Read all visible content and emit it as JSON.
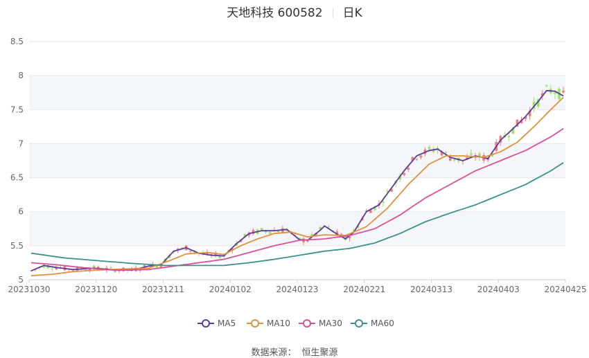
{
  "header": {
    "stock_name_code": "天地科技 600582",
    "period": "日K"
  },
  "source": {
    "label": "数据来源：",
    "value": "恒生聚源"
  },
  "colors": {
    "up": "#f07b7b",
    "down": "#99e25a",
    "ma5": "#5b3a9b",
    "ma10": "#e0913d",
    "ma30": "#d9509a",
    "ma60": "#3c8f8f",
    "grid": "#e6e6e6",
    "band": "#f5f6fa"
  },
  "chart_data": {
    "type": "candlestick",
    "x_tick_labels": [
      "20231030",
      "20231120",
      "20231211",
      "20240102",
      "20240123",
      "20240221",
      "20240313",
      "20240403",
      "20240425"
    ],
    "y_ticks": [
      5,
      5.5,
      6,
      6.5,
      7,
      7.5,
      8,
      8.5
    ],
    "ylim": [
      5,
      8.5
    ],
    "trading_days": 120,
    "series": [
      {
        "name": "MA5",
        "color": "#5b3a9b",
        "keypoints": [
          [
            0,
            5.13
          ],
          [
            3,
            5.21
          ],
          [
            6,
            5.18
          ],
          [
            10,
            5.15
          ],
          [
            15,
            5.17
          ],
          [
            19,
            5.15
          ],
          [
            24,
            5.14
          ],
          [
            28,
            5.2
          ],
          [
            31,
            5.22
          ],
          [
            34,
            5.42
          ],
          [
            37,
            5.47
          ],
          [
            40,
            5.39
          ],
          [
            43,
            5.36
          ],
          [
            46,
            5.35
          ],
          [
            49,
            5.53
          ],
          [
            52,
            5.68
          ],
          [
            55,
            5.72
          ],
          [
            58,
            5.72
          ],
          [
            61,
            5.74
          ],
          [
            64,
            5.59
          ],
          [
            66,
            5.58
          ],
          [
            69,
            5.73
          ],
          [
            70,
            5.79
          ],
          [
            73,
            5.67
          ],
          [
            75,
            5.6
          ],
          [
            77,
            5.7
          ],
          [
            80,
            6.0
          ],
          [
            83,
            6.1
          ],
          [
            86,
            6.35
          ],
          [
            89,
            6.6
          ],
          [
            92,
            6.82
          ],
          [
            95,
            6.9
          ],
          [
            97,
            6.92
          ],
          [
            100,
            6.8
          ],
          [
            103,
            6.75
          ],
          [
            106,
            6.82
          ],
          [
            109,
            6.78
          ],
          [
            112,
            7.05
          ],
          [
            115,
            7.22
          ],
          [
            118,
            7.4
          ],
          [
            121,
            7.62
          ],
          [
            123,
            7.78
          ],
          [
            125,
            7.77
          ],
          [
            127,
            7.7
          ]
        ]
      },
      {
        "name": "MA10",
        "color": "#e0913d",
        "keypoints": [
          [
            0,
            5.06
          ],
          [
            5,
            5.08
          ],
          [
            10,
            5.12
          ],
          [
            18,
            5.15
          ],
          [
            28,
            5.17
          ],
          [
            33,
            5.28
          ],
          [
            37,
            5.38
          ],
          [
            42,
            5.4
          ],
          [
            46,
            5.37
          ],
          [
            50,
            5.5
          ],
          [
            54,
            5.6
          ],
          [
            58,
            5.68
          ],
          [
            62,
            5.7
          ],
          [
            66,
            5.63
          ],
          [
            70,
            5.66
          ],
          [
            75,
            5.65
          ],
          [
            80,
            5.78
          ],
          [
            85,
            6.05
          ],
          [
            90,
            6.4
          ],
          [
            95,
            6.7
          ],
          [
            99,
            6.82
          ],
          [
            103,
            6.82
          ],
          [
            108,
            6.8
          ],
          [
            112,
            6.88
          ],
          [
            116,
            7.02
          ],
          [
            120,
            7.25
          ],
          [
            124,
            7.5
          ],
          [
            127,
            7.68
          ]
        ]
      },
      {
        "name": "MA30",
        "color": "#d9509a",
        "keypoints": [
          [
            0,
            5.25
          ],
          [
            6,
            5.22
          ],
          [
            12,
            5.18
          ],
          [
            20,
            5.14
          ],
          [
            28,
            5.15
          ],
          [
            34,
            5.2
          ],
          [
            40,
            5.25
          ],
          [
            46,
            5.3
          ],
          [
            52,
            5.4
          ],
          [
            58,
            5.5
          ],
          [
            64,
            5.58
          ],
          [
            70,
            5.6
          ],
          [
            76,
            5.65
          ],
          [
            82,
            5.75
          ],
          [
            88,
            5.95
          ],
          [
            94,
            6.2
          ],
          [
            100,
            6.4
          ],
          [
            106,
            6.6
          ],
          [
            112,
            6.75
          ],
          [
            118,
            6.9
          ],
          [
            124,
            7.1
          ],
          [
            127,
            7.22
          ]
        ]
      },
      {
        "name": "MA60",
        "color": "#3c8f8f",
        "keypoints": [
          [
            0,
            5.39
          ],
          [
            8,
            5.32
          ],
          [
            16,
            5.28
          ],
          [
            24,
            5.24
          ],
          [
            32,
            5.21
          ],
          [
            40,
            5.21
          ],
          [
            46,
            5.21
          ],
          [
            52,
            5.25
          ],
          [
            58,
            5.3
          ],
          [
            64,
            5.36
          ],
          [
            70,
            5.42
          ],
          [
            76,
            5.46
          ],
          [
            82,
            5.54
          ],
          [
            88,
            5.68
          ],
          [
            94,
            5.85
          ],
          [
            100,
            5.98
          ],
          [
            106,
            6.1
          ],
          [
            112,
            6.25
          ],
          [
            118,
            6.4
          ],
          [
            124,
            6.6
          ],
          [
            127,
            6.72
          ]
        ]
      }
    ]
  }
}
